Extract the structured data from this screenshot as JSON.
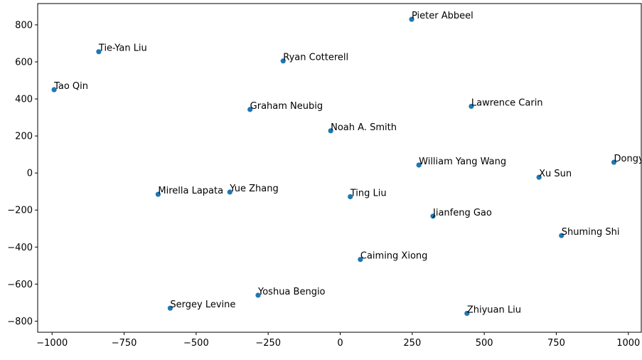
{
  "chart_data": {
    "type": "scatter",
    "title": "",
    "xlabel": "",
    "ylabel": "",
    "xlim": [
      -1050,
      1045
    ],
    "ylim": [
      -860,
      915
    ],
    "xticks": [
      -1000,
      -750,
      -500,
      -250,
      0,
      250,
      500,
      750,
      1000
    ],
    "xtick_labels": [
      "−1000",
      "−750",
      "−500",
      "−250",
      "0",
      "250",
      "500",
      "750",
      "1000"
    ],
    "yticks": [
      -800,
      -600,
      -400,
      -200,
      0,
      200,
      400,
      600,
      800
    ],
    "ytick_labels": [
      "−800",
      "−600",
      "−400",
      "−200",
      "0",
      "200",
      "400",
      "600",
      "800"
    ],
    "grid": false,
    "marker_color": "#1f77b4",
    "points": [
      {
        "label": "Pieter Abbeel",
        "x": 248,
        "y": 830
      },
      {
        "label": "Tie-Yan Liu",
        "x": -838,
        "y": 655
      },
      {
        "label": "Ryan Cotterell",
        "x": -198,
        "y": 605
      },
      {
        "label": "Tao Qin",
        "x": -993,
        "y": 450
      },
      {
        "label": "Lawrence Carin",
        "x": 455,
        "y": 360
      },
      {
        "label": "Graham Neubig",
        "x": -313,
        "y": 343
      },
      {
        "label": "Noah A. Smith",
        "x": -33,
        "y": 228
      },
      {
        "label": "William Yang Wang",
        "x": 273,
        "y": 43
      },
      {
        "label": "Dongyan Zhao",
        "x": 950,
        "y": 58
      },
      {
        "label": "Xu Sun",
        "x": 690,
        "y": -23
      },
      {
        "label": "Mirella Lapata",
        "x": -632,
        "y": -115
      },
      {
        "label": "Yue Zhang",
        "x": -383,
        "y": -103
      },
      {
        "label": "Ting Liu",
        "x": 35,
        "y": -128
      },
      {
        "label": "Jianfeng Gao",
        "x": 322,
        "y": -233
      },
      {
        "label": "Shuming Shi",
        "x": 768,
        "y": -338
      },
      {
        "label": "Caiming Xiong",
        "x": 70,
        "y": -467
      },
      {
        "label": "Yoshua Bengio",
        "x": -285,
        "y": -660
      },
      {
        "label": "Sergey Levine",
        "x": -590,
        "y": -730
      },
      {
        "label": "Zhiyuan Liu",
        "x": 440,
        "y": -758
      }
    ]
  }
}
